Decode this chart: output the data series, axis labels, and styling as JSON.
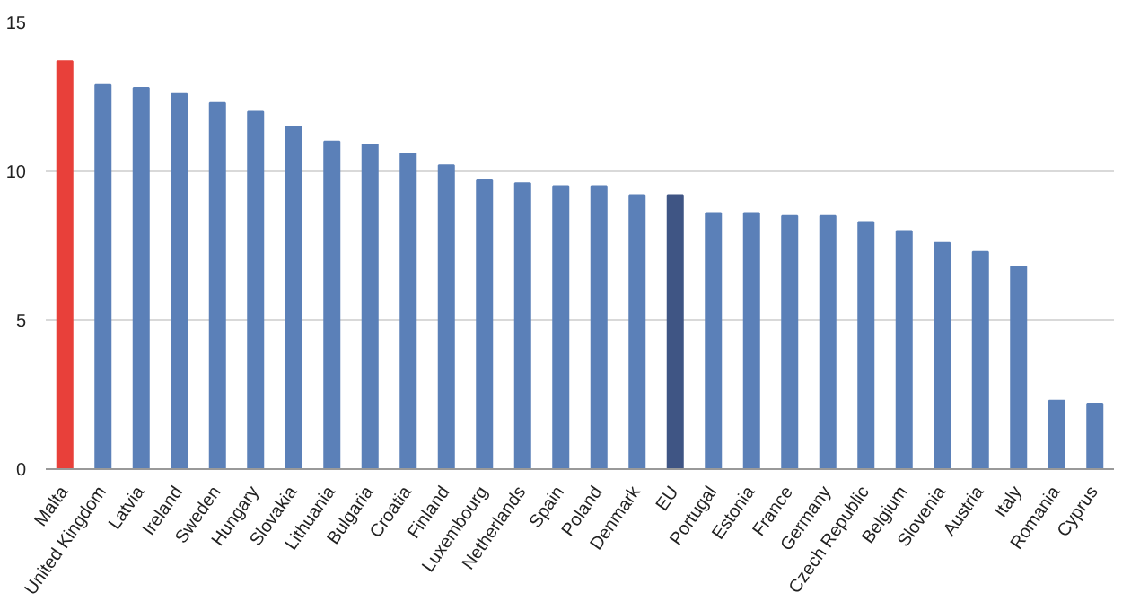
{
  "chart_data": {
    "type": "bar",
    "categories": [
      "Malta",
      "United Kingdom",
      "Latvia",
      "Ireland",
      "Sweden",
      "Hungary",
      "Slovakia",
      "Lithuania",
      "Bulgaria",
      "Croatia",
      "Finland",
      "Luxembourg",
      "Netherlands",
      "Spain",
      "Poland",
      "Denmark",
      "EU",
      "Portugal",
      "Estonia",
      "France",
      "Germany",
      "Czech Republic",
      "Belgium",
      "Slovenia",
      "Austria",
      "Italy",
      "Romania",
      "Cyprus"
    ],
    "values": [
      13.7,
      12.9,
      12.8,
      12.6,
      12.3,
      12.0,
      11.5,
      11.0,
      10.9,
      10.6,
      10.2,
      9.7,
      9.6,
      9.5,
      9.5,
      9.2,
      9.2,
      8.6,
      8.6,
      8.5,
      8.5,
      8.3,
      8.0,
      7.6,
      7.3,
      6.8,
      2.3,
      2.2
    ],
    "colors": [
      "#e8403a",
      "#5b80b8",
      "#5b80b8",
      "#5b80b8",
      "#5b80b8",
      "#5b80b8",
      "#5b80b8",
      "#5b80b8",
      "#5b80b8",
      "#5b80b8",
      "#5b80b8",
      "#5b80b8",
      "#5b80b8",
      "#5b80b8",
      "#5b80b8",
      "#5b80b8",
      "#3f5584",
      "#5b80b8",
      "#5b80b8",
      "#5b80b8",
      "#5b80b8",
      "#5b80b8",
      "#5b80b8",
      "#5b80b8",
      "#5b80b8",
      "#5b80b8",
      "#5b80b8",
      "#5b80b8"
    ],
    "ylim": [
      0,
      15
    ],
    "yticks": [
      0,
      5,
      10,
      15
    ],
    "grid": "y"
  }
}
